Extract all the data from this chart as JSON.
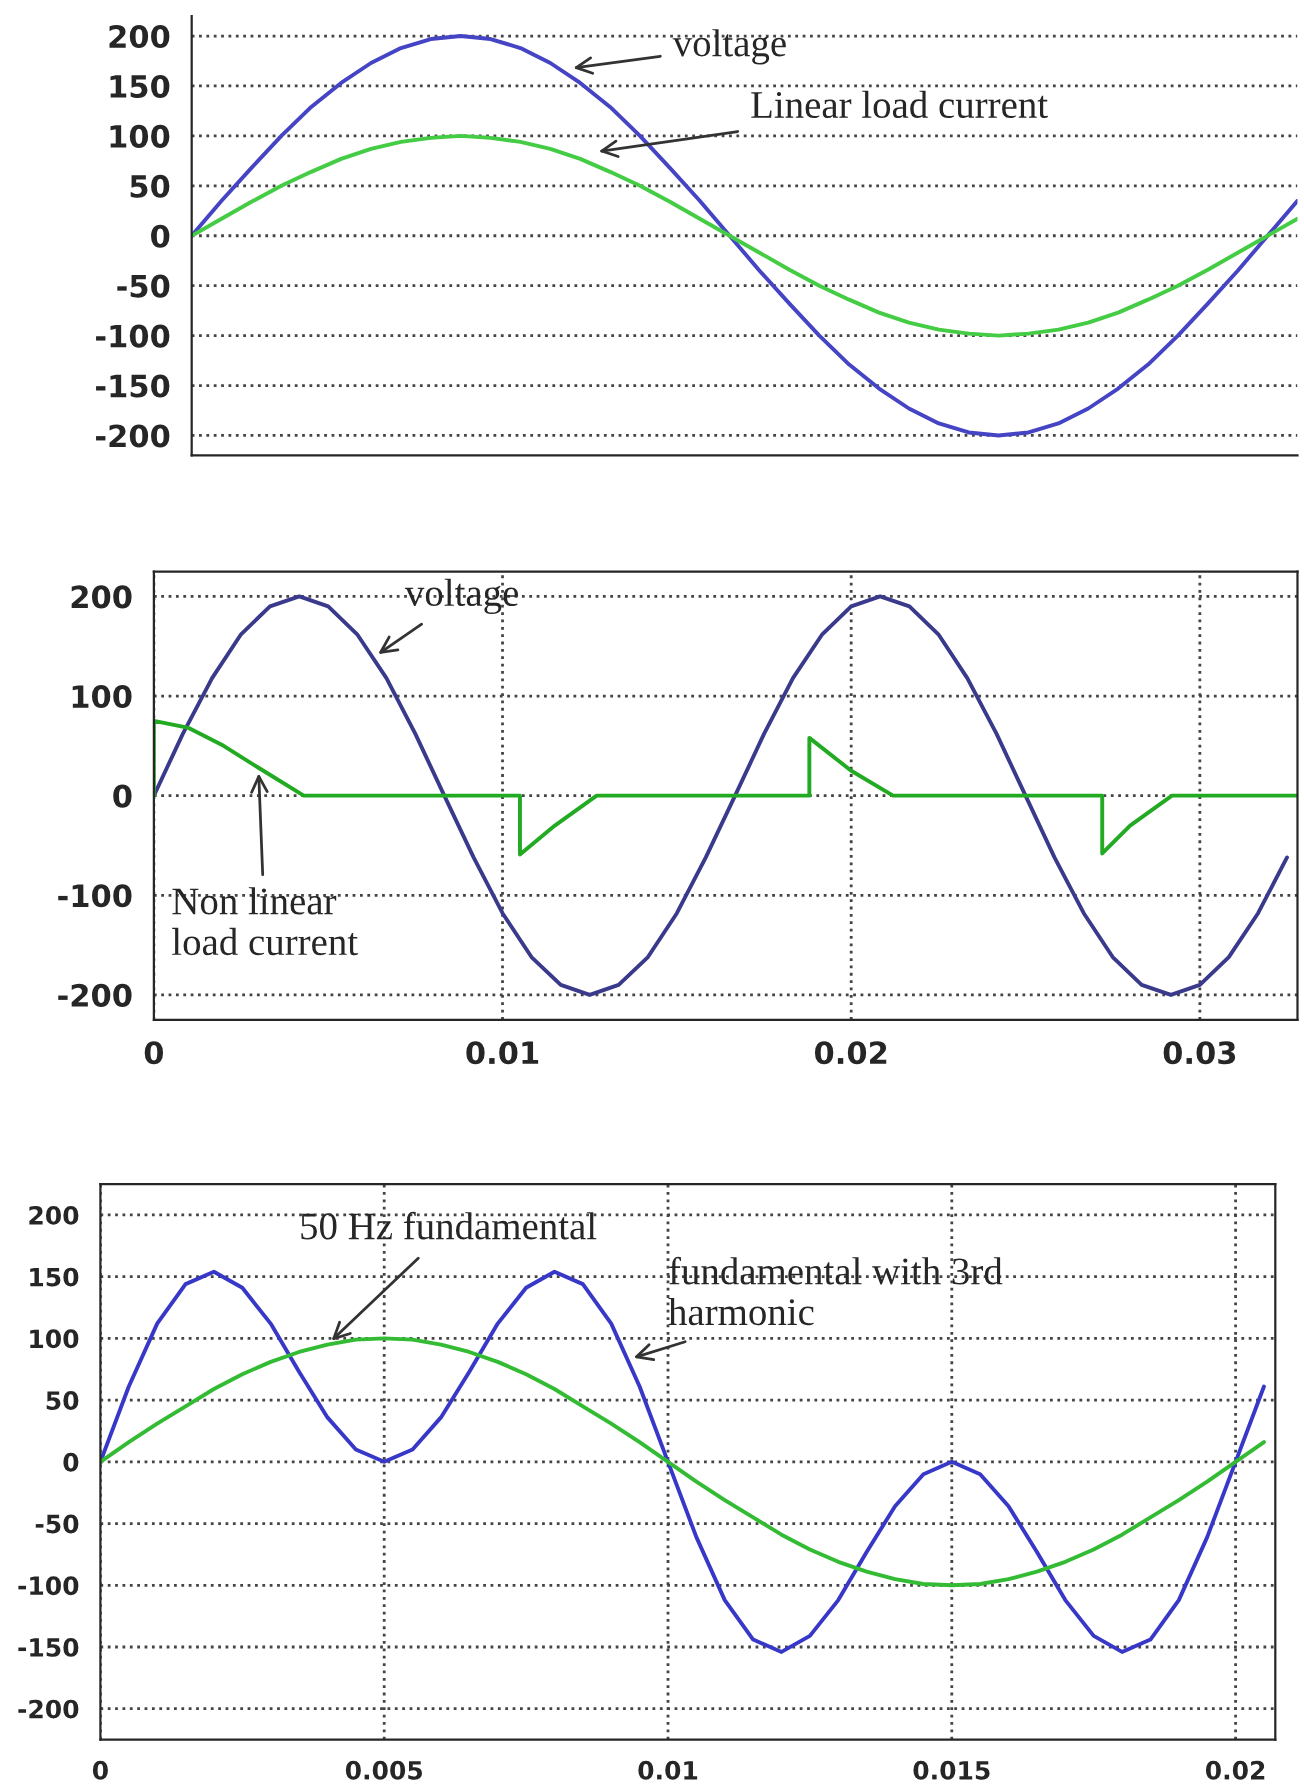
{
  "chart_data": [
    {
      "type": "line",
      "categories": [
        null,
        null,
        null,
        null,
        null,
        null,
        null,
        null,
        null,
        null,
        null,
        null,
        null,
        null,
        null,
        null,
        null,
        null,
        null,
        null,
        null,
        null,
        null,
        null,
        null,
        null,
        null,
        null,
        null,
        null,
        null,
        null,
        null,
        null,
        null,
        null,
        null,
        null
      ],
      "series": [
        {
          "color": "#4444c4",
          "values": [
            0,
            35,
            68,
            100,
            129,
            153,
            173,
            188,
            197,
            200,
            197,
            188,
            173,
            153,
            129,
            100,
            68,
            35,
            0,
            -35,
            -68,
            -100,
            -129,
            -153,
            -173,
            -188,
            -197,
            -200,
            -197,
            -188,
            -173,
            -153,
            -129,
            -100,
            -68,
            -35,
            0,
            35
          ]
        },
        {
          "color": "#44cc44",
          "values": [
            0,
            17,
            34,
            50,
            64,
            77,
            87,
            94,
            98,
            100,
            98,
            94,
            87,
            77,
            64,
            50,
            34,
            17,
            0,
            -17,
            -34,
            -50,
            -64,
            -77,
            -87,
            -94,
            -98,
            -100,
            -98,
            -94,
            -87,
            -77,
            -64,
            -50,
            -34,
            -17,
            0,
            17
          ]
        }
      ],
      "ylim": [
        -220,
        220
      ],
      "yticks": [
        200,
        150,
        100,
        50,
        0,
        -50,
        -100,
        -150,
        -200
      ],
      "grid": "y",
      "tick_labels": "y",
      "line_style": "solid",
      "annotations": [
        "voltage",
        "Linear load current"
      ]
    },
    {
      "type": "line",
      "series": [
        {
          "color": "#3a3a8c",
          "x": [
            0,
            0.00083,
            0.00167,
            0.0025,
            0.00333,
            0.00417,
            0.005,
            0.00583,
            0.00667,
            0.0075,
            0.00833,
            0.00917,
            0.01,
            0.01083,
            0.01167,
            0.0125,
            0.01333,
            0.01417,
            0.015,
            0.01583,
            0.01667,
            0.0175,
            0.01833,
            0.01917,
            0.02,
            0.02083,
            0.02167,
            0.0225,
            0.02333,
            0.02417,
            0.025,
            0.02583,
            0.02667,
            0.0275,
            0.02833,
            0.02917,
            0.03,
            0.03083,
            0.03167,
            0.0325
          ],
          "values": [
            0,
            62,
            118,
            162,
            190,
            200,
            190,
            162,
            118,
            62,
            0,
            -62,
            -118,
            -162,
            -190,
            -200,
            -190,
            -162,
            -118,
            -62,
            0,
            62,
            118,
            162,
            190,
            200,
            190,
            162,
            118,
            62,
            0,
            -62,
            -118,
            -162,
            -190,
            -200,
            -190,
            -162,
            -118,
            -62
          ]
        },
        {
          "color": "#22aa22",
          "x": [
            0,
            0,
            0.001,
            0.002,
            0.003,
            0.0043,
            0.0105,
            0.0105,
            0.0115,
            0.0127,
            0.0188,
            0.0188,
            0.02,
            0.0212,
            0.0272,
            0.0272,
            0.028,
            0.0292,
            0.0328
          ],
          "values": [
            0,
            75,
            68,
            50,
            28,
            0,
            0,
            -59,
            -30,
            0,
            0,
            58,
            25,
            0,
            0,
            -58,
            -30,
            0,
            0
          ]
        }
      ],
      "xlim": [
        0,
        0.0328
      ],
      "xticks": [
        {
          "value": 0,
          "label": "0"
        },
        {
          "value": 0.01,
          "label": "0.01"
        },
        {
          "value": 0.02,
          "label": "0.02"
        },
        {
          "value": 0.03,
          "label": "0.03"
        }
      ],
      "ylim": [
        -225,
        225
      ],
      "yticks": [
        200,
        100,
        0,
        -100,
        -200
      ],
      "grid": true,
      "line_style": "solid",
      "annotations": [
        {
          "text": "voltage",
          "x": 0.0063,
          "y": 139
        },
        {
          "text": "Non linear\nload current",
          "x": 0.003,
          "y": 28
        }
      ]
    },
    {
      "type": "line",
      "x": [
        0,
        0.0005,
        0.001,
        0.0015,
        0.002,
        0.0025,
        0.003,
        0.0035,
        0.004,
        0.0045,
        0.005,
        0.0055,
        0.006,
        0.0065,
        0.007,
        0.0075,
        0.008,
        0.0085,
        0.009,
        0.0095,
        0.01,
        0.0105,
        0.011,
        0.0115,
        0.012,
        0.0125,
        0.013,
        0.0135,
        0.014,
        0.0145,
        0.015,
        0.0155,
        0.016,
        0.0165,
        0.017,
        0.0175,
        0.018,
        0.0185,
        0.019,
        0.0195,
        0.02,
        0.0205
      ],
      "series": [
        {
          "color": "#3838c8",
          "values": [
            0,
            61,
            112,
            144,
            154,
            141,
            112,
            73,
            36,
            10,
            0,
            10,
            36,
            73,
            112,
            141,
            154,
            144,
            112,
            61,
            0,
            -61,
            -112,
            -144,
            -154,
            -141,
            -112,
            -73,
            -36,
            -10,
            0,
            -10,
            -36,
            -73,
            -112,
            -141,
            -154,
            -144,
            -112,
            -61,
            0,
            61
          ]
        },
        {
          "color": "#33bb33",
          "values": [
            0,
            16,
            31,
            45,
            59,
            71,
            81,
            89,
            95,
            99,
            100,
            99,
            95,
            89,
            81,
            71,
            59,
            45,
            31,
            16,
            0,
            -16,
            -31,
            -45,
            -59,
            -71,
            -81,
            -89,
            -95,
            -99,
            -100,
            -99,
            -95,
            -89,
            -81,
            -71,
            -59,
            -45,
            -31,
            -16,
            0,
            16
          ]
        }
      ],
      "xlim": [
        0,
        0.0207
      ],
      "xticks": [
        {
          "value": 0,
          "label": "0"
        },
        {
          "value": 0.005,
          "label": "0.005"
        },
        {
          "value": 0.01,
          "label": "0.01"
        },
        {
          "value": 0.015,
          "label": "0.015"
        },
        {
          "value": 0.02,
          "label": "0.02"
        }
      ],
      "ylim": [
        -225,
        225
      ],
      "yticks": [
        200,
        150,
        100,
        50,
        0,
        -50,
        -100,
        -150,
        -200
      ],
      "grid": true,
      "line_style": "solid",
      "annotations": [
        {
          "text": "50 Hz fundamental",
          "x": 0.004,
          "y": 95
        },
        {
          "text": "fundamental with 3rd\nharmonic",
          "x": 0.0093,
          "y": 83
        }
      ]
    }
  ]
}
